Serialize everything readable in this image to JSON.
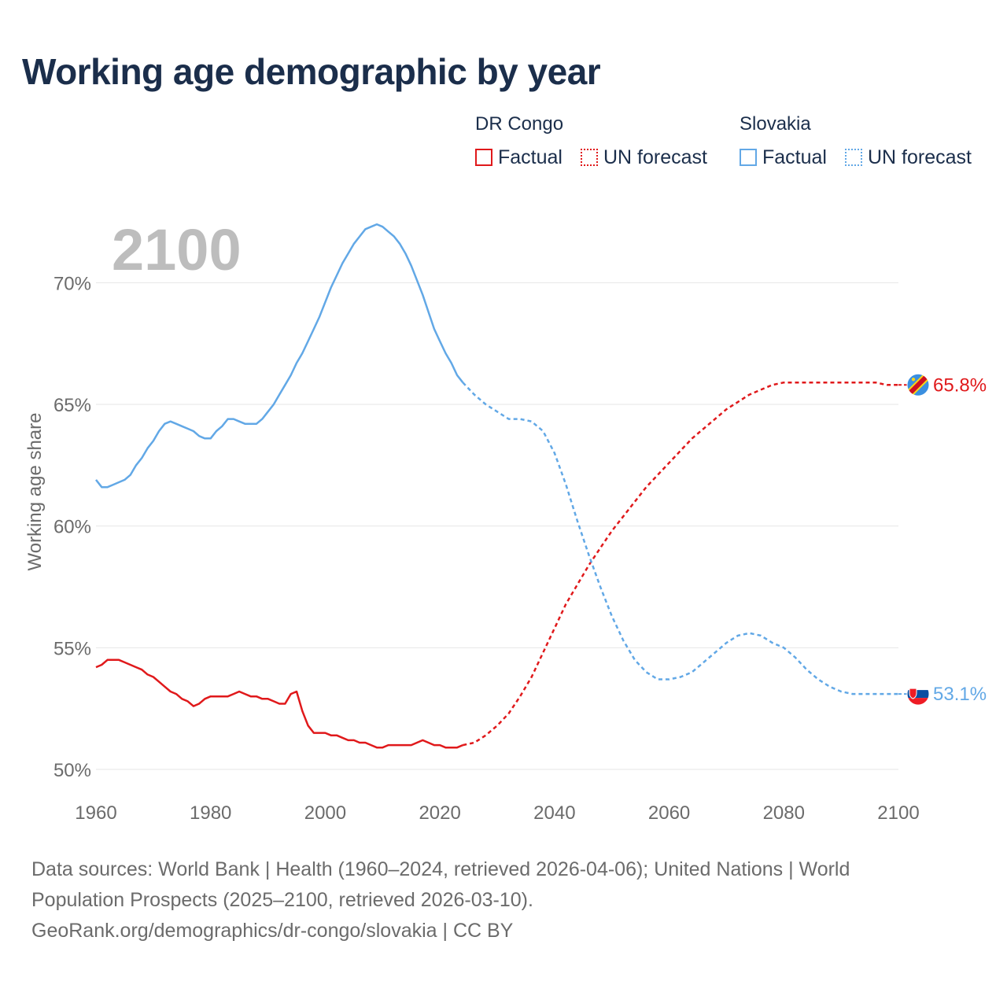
{
  "title": "Working age demographic by year",
  "legend": {
    "groups": [
      {
        "name": "DR Congo",
        "factual": "Factual",
        "forecast": "UN forecast",
        "color": "#e0191b"
      },
      {
        "name": "Slovakia",
        "factual": "Factual",
        "forecast": "UN forecast",
        "color": "#62a8e6"
      }
    ]
  },
  "year_label": "2100",
  "source": {
    "line1": "Data sources: World Bank | Health (1960–2024, retrieved 2026-04-06); United Nations | World",
    "line2": "Population Prospects (2025–2100, retrieved 2026-03-10).",
    "line3": "GeoRank.org/demographics/dr-congo/slovakia | CC BY"
  },
  "chart_data": {
    "type": "line",
    "title": "Working age demographic by year",
    "ylabel": "Working age share",
    "xlabel": "",
    "xlim": [
      1960,
      2100
    ],
    "ylim": [
      50,
      72.5
    ],
    "x_ticks": [
      1960,
      1980,
      2000,
      2020,
      2040,
      2060,
      2080,
      2100
    ],
    "y_ticks": [
      50,
      55,
      60,
      65,
      70
    ],
    "y_tick_labels": [
      "50%",
      "55%",
      "60%",
      "65%",
      "70%"
    ],
    "grid": true,
    "series": [
      {
        "name": "DR Congo",
        "color": "#e0191b",
        "end_label": "65.8%",
        "factual": {
          "x": [
            1960,
            1961,
            1962,
            1963,
            1964,
            1965,
            1966,
            1967,
            1968,
            1969,
            1970,
            1971,
            1972,
            1973,
            1974,
            1975,
            1976,
            1977,
            1978,
            1979,
            1980,
            1981,
            1982,
            1983,
            1984,
            1985,
            1986,
            1987,
            1988,
            1989,
            1990,
            1991,
            1992,
            1993,
            1994,
            1995,
            1996,
            1997,
            1998,
            1999,
            2000,
            2001,
            2002,
            2003,
            2004,
            2005,
            2006,
            2007,
            2008,
            2009,
            2010,
            2011,
            2012,
            2013,
            2014,
            2015,
            2016,
            2017,
            2018,
            2019,
            2020,
            2021,
            2022,
            2023,
            2024
          ],
          "y": [
            54.2,
            54.3,
            54.5,
            54.5,
            54.5,
            54.4,
            54.3,
            54.2,
            54.1,
            53.9,
            53.8,
            53.6,
            53.4,
            53.2,
            53.1,
            52.9,
            52.8,
            52.6,
            52.7,
            52.9,
            53.0,
            53.0,
            53.0,
            53.0,
            53.1,
            53.2,
            53.1,
            53.0,
            53.0,
            52.9,
            52.9,
            52.8,
            52.7,
            52.7,
            53.1,
            53.2,
            52.4,
            51.8,
            51.5,
            51.5,
            51.5,
            51.4,
            51.4,
            51.3,
            51.2,
            51.2,
            51.1,
            51.1,
            51.0,
            50.9,
            50.9,
            51.0,
            51.0,
            51.0,
            51.0,
            51.0,
            51.1,
            51.2,
            51.1,
            51.0,
            51.0,
            50.9,
            50.9,
            50.9,
            51.0
          ]
        },
        "forecast": {
          "x": [
            2024,
            2026,
            2028,
            2030,
            2032,
            2034,
            2036,
            2038,
            2040,
            2042,
            2044,
            2046,
            2048,
            2050,
            2052,
            2054,
            2056,
            2058,
            2060,
            2062,
            2064,
            2066,
            2068,
            2070,
            2072,
            2074,
            2076,
            2078,
            2080,
            2082,
            2084,
            2086,
            2088,
            2090,
            2092,
            2094,
            2096,
            2098,
            2100
          ],
          "y": [
            51.0,
            51.1,
            51.4,
            51.8,
            52.3,
            53.0,
            53.8,
            54.8,
            55.8,
            56.8,
            57.6,
            58.4,
            59.1,
            59.8,
            60.4,
            61.0,
            61.6,
            62.1,
            62.6,
            63.1,
            63.6,
            64.0,
            64.4,
            64.8,
            65.1,
            65.4,
            65.6,
            65.8,
            65.9,
            65.9,
            65.9,
            65.9,
            65.9,
            65.9,
            65.9,
            65.9,
            65.9,
            65.8,
            65.8
          ]
        }
      },
      {
        "name": "Slovakia",
        "color": "#62a8e6",
        "end_label": "53.1%",
        "factual": {
          "x": [
            1960,
            1961,
            1962,
            1963,
            1964,
            1965,
            1966,
            1967,
            1968,
            1969,
            1970,
            1971,
            1972,
            1973,
            1974,
            1975,
            1976,
            1977,
            1978,
            1979,
            1980,
            1981,
            1982,
            1983,
            1984,
            1985,
            1986,
            1987,
            1988,
            1989,
            1990,
            1991,
            1992,
            1993,
            1994,
            1995,
            1996,
            1997,
            1998,
            1999,
            2000,
            2001,
            2002,
            2003,
            2004,
            2005,
            2006,
            2007,
            2008,
            2009,
            2010,
            2011,
            2012,
            2013,
            2014,
            2015,
            2016,
            2017,
            2018,
            2019,
            2020,
            2021,
            2022,
            2023,
            2024
          ],
          "y": [
            61.9,
            61.6,
            61.6,
            61.7,
            61.8,
            61.9,
            62.1,
            62.5,
            62.8,
            63.2,
            63.5,
            63.9,
            64.2,
            64.3,
            64.2,
            64.1,
            64.0,
            63.9,
            63.7,
            63.6,
            63.6,
            63.9,
            64.1,
            64.4,
            64.4,
            64.3,
            64.2,
            64.2,
            64.2,
            64.4,
            64.7,
            65.0,
            65.4,
            65.8,
            66.2,
            66.7,
            67.1,
            67.6,
            68.1,
            68.6,
            69.2,
            69.8,
            70.3,
            70.8,
            71.2,
            71.6,
            71.9,
            72.2,
            72.3,
            72.4,
            72.3,
            72.1,
            71.9,
            71.6,
            71.2,
            70.7,
            70.1,
            69.5,
            68.8,
            68.1,
            67.6,
            67.1,
            66.7,
            66.2,
            65.9
          ]
        },
        "forecast": {
          "x": [
            2024,
            2026,
            2028,
            2030,
            2032,
            2034,
            2036,
            2038,
            2040,
            2042,
            2044,
            2046,
            2048,
            2050,
            2052,
            2054,
            2056,
            2058,
            2060,
            2062,
            2064,
            2066,
            2068,
            2070,
            2072,
            2074,
            2076,
            2078,
            2080,
            2082,
            2084,
            2086,
            2088,
            2090,
            2092,
            2094,
            2096,
            2098,
            2100
          ],
          "y": [
            65.9,
            65.4,
            65.0,
            64.7,
            64.4,
            64.4,
            64.3,
            63.9,
            63.0,
            61.7,
            60.2,
            58.8,
            57.5,
            56.3,
            55.3,
            54.5,
            54.0,
            53.7,
            53.7,
            53.8,
            54.0,
            54.4,
            54.8,
            55.2,
            55.5,
            55.6,
            55.5,
            55.2,
            55.0,
            54.6,
            54.1,
            53.7,
            53.4,
            53.2,
            53.1,
            53.1,
            53.1,
            53.1,
            53.1
          ]
        }
      }
    ]
  }
}
